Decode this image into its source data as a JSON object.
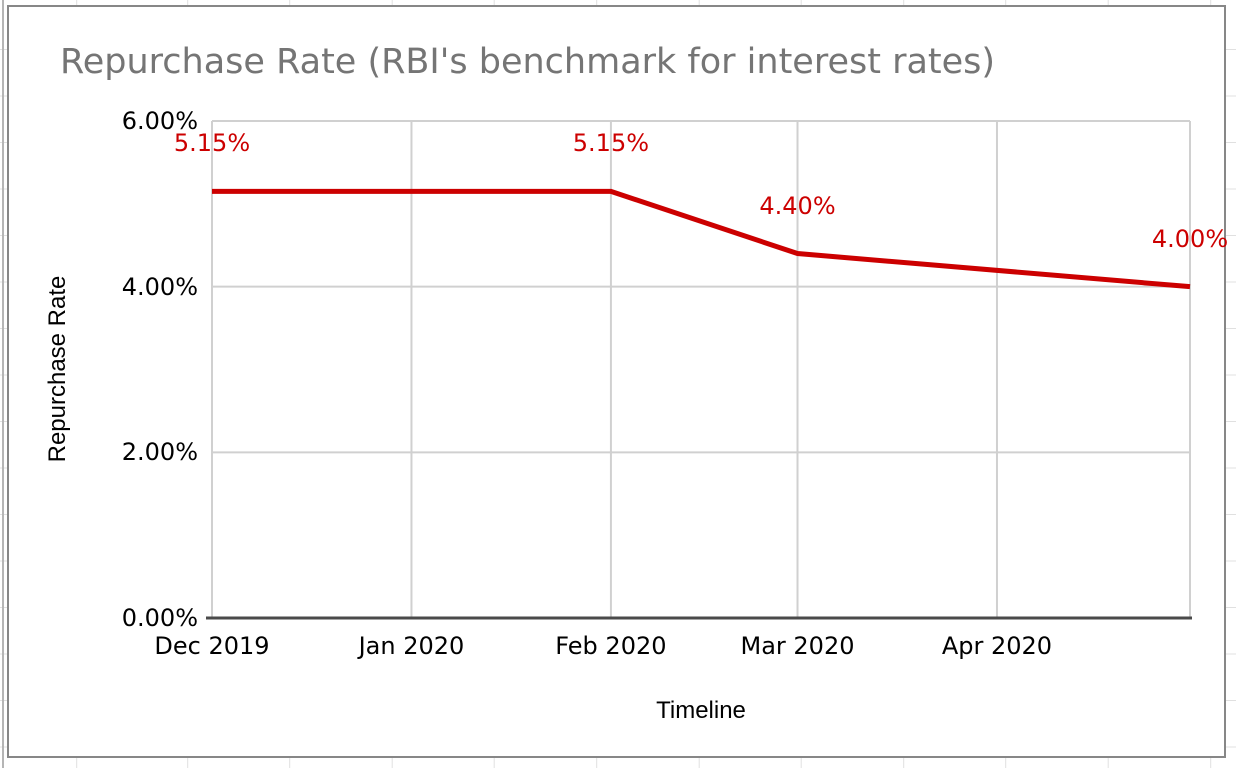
{
  "chart_data": {
    "type": "line",
    "title": "Repurchase Rate (RBI's benchmark for interest rates)",
    "xlabel": "Timeline",
    "ylabel": "Repurchase Rate",
    "ylim": [
      0,
      6
    ],
    "grid": true,
    "legend": "none",
    "y_ticks": [
      {
        "value": 6,
        "label": "6.00%"
      },
      {
        "value": 4,
        "label": "4.00%"
      },
      {
        "value": 2,
        "label": "2.00%"
      },
      {
        "value": 0,
        "label": "0.00%"
      }
    ],
    "x_axis": {
      "type": "timeline",
      "end_day": 152,
      "ticks": [
        {
          "label": "Dec 2019",
          "day": 0
        },
        {
          "label": "Jan 2020",
          "day": 31
        },
        {
          "label": "Feb 2020",
          "day": 62
        },
        {
          "label": "Mar 2020",
          "day": 91
        },
        {
          "label": "Apr 2020",
          "day": 122
        }
      ]
    },
    "series": [
      {
        "name": "Repurchase Rate",
        "color": "#cc0000",
        "points": [
          {
            "day": 0,
            "value": 5.15,
            "label": "5.15%"
          },
          {
            "day": 62,
            "value": 5.15,
            "label": "5.15%"
          },
          {
            "day": 91,
            "value": 4.4,
            "label": "4.40%"
          },
          {
            "day": 152,
            "value": 4.0,
            "label": "4.00%"
          }
        ]
      }
    ],
    "colors": {
      "series_red": "#cc0000",
      "title_gray": "#757575",
      "gridline": "#d0d0d0",
      "axis_line": "#4a4a4a"
    }
  }
}
